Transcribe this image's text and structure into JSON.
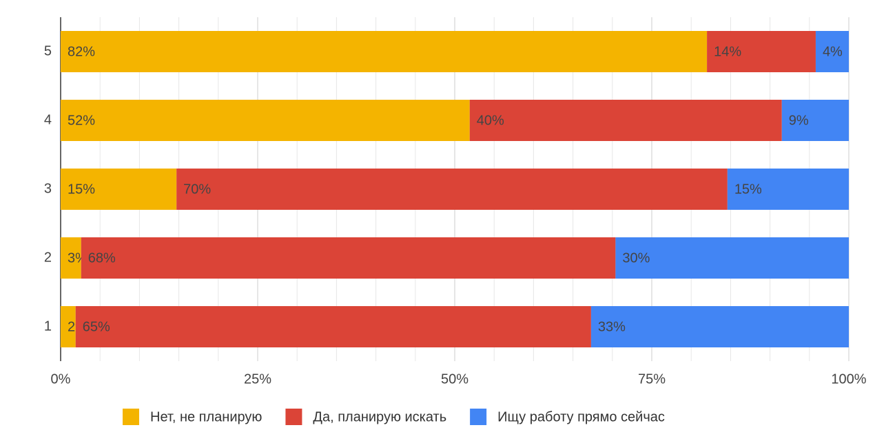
{
  "chart_data": {
    "type": "stacked-bar-horizontal",
    "categories": [
      "1",
      "2",
      "3",
      "4",
      "5"
    ],
    "series": [
      {
        "name": "Нет, не планирую",
        "color": "#f4b400",
        "label_color": "#222222",
        "values": [
          1.9,
          2.6,
          14.7,
          51.9,
          82.0
        ],
        "value_labels": [
          "2%",
          "3%",
          "15%",
          "52%",
          "82%"
        ]
      },
      {
        "name": "Да, планирую искать",
        "color": "#db4437",
        "label_color": "#ffffff",
        "values": [
          65.4,
          67.8,
          69.9,
          39.6,
          13.8
        ],
        "value_labels": [
          "65%",
          "68%",
          "70%",
          "40%",
          "14%"
        ]
      },
      {
        "name": "Ищу работу прямо сейчас",
        "color": "#4285f4",
        "label_color": "#ffffff",
        "values": [
          32.7,
          29.6,
          15.4,
          8.5,
          4.2
        ],
        "value_labels": [
          "33%",
          "30%",
          "15%",
          "9%",
          "4%"
        ]
      }
    ],
    "xlim": [
      0,
      100
    ],
    "xticks": [
      {
        "value": 0,
        "label": "0%"
      },
      {
        "value": 25,
        "label": "25%"
      },
      {
        "value": 50,
        "label": "50%"
      },
      {
        "value": 75,
        "label": "75%"
      },
      {
        "value": 100,
        "label": "100%"
      }
    ],
    "grid": true
  }
}
